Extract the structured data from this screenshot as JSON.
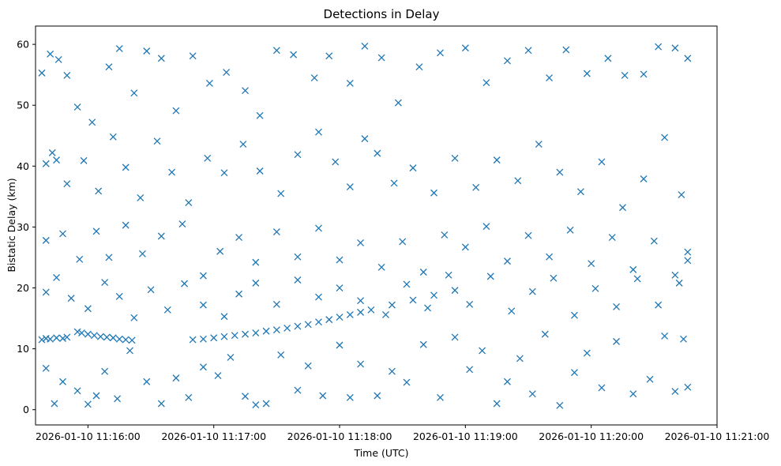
{
  "chart_data": {
    "type": "scatter",
    "title": "Detections in Delay",
    "xlabel": "Time (UTC)",
    "ylabel": "Bistatic Delay (km)",
    "x_ticks": [
      "2026-01-10 11:16:00",
      "2026-01-10 11:17:00",
      "2026-01-10 11:18:00",
      "2026-01-10 11:19:00",
      "2026-01-10 11:20:00",
      "2026-01-10 11:21:00"
    ],
    "y_ticks": [
      "0",
      "10",
      "20",
      "30",
      "40",
      "50",
      "60"
    ],
    "xlim": [
      "2026-01-10 11:15:35",
      "2026-01-10 11:21:00"
    ],
    "ylim": [
      -2.5,
      63
    ],
    "marker": "x",
    "grid": false,
    "series": [
      {
        "color": "#1f77b4",
        "points": [
          [
            "2026-01-10 11:15:38",
            11.5
          ],
          [
            "2026-01-10 11:15:40",
            11.7
          ],
          [
            "2026-01-10 11:15:42",
            11.6
          ],
          [
            "2026-01-10 11:15:45",
            11.8
          ],
          [
            "2026-01-10 11:15:48",
            11.7
          ],
          [
            "2026-01-10 11:15:50",
            11.9
          ],
          [
            "2026-01-10 11:15:55",
            12.8
          ],
          [
            "2026-01-10 11:15:57",
            12.6
          ],
          [
            "2026-01-10 11:16:00",
            12.4
          ],
          [
            "2026-01-10 11:16:03",
            12.2
          ],
          [
            "2026-01-10 11:16:06",
            12.0
          ],
          [
            "2026-01-10 11:16:09",
            11.9
          ],
          [
            "2026-01-10 11:16:12",
            11.8
          ],
          [
            "2026-01-10 11:16:15",
            11.6
          ],
          [
            "2026-01-10 11:16:18",
            11.5
          ],
          [
            "2026-01-10 11:16:21",
            11.4
          ],
          [
            "2026-01-10 11:16:50",
            11.5
          ],
          [
            "2026-01-10 11:16:55",
            11.6
          ],
          [
            "2026-01-10 11:17:00",
            11.8
          ],
          [
            "2026-01-10 11:17:05",
            12.0
          ],
          [
            "2026-01-10 11:17:10",
            12.2
          ],
          [
            "2026-01-10 11:17:15",
            12.4
          ],
          [
            "2026-01-10 11:17:20",
            12.6
          ],
          [
            "2026-01-10 11:17:25",
            12.9
          ],
          [
            "2026-01-10 11:17:30",
            13.1
          ],
          [
            "2026-01-10 11:17:35",
            13.4
          ],
          [
            "2026-01-10 11:17:40",
            13.7
          ],
          [
            "2026-01-10 11:17:45",
            14.0
          ],
          [
            "2026-01-10 11:17:50",
            14.4
          ],
          [
            "2026-01-10 11:17:55",
            14.8
          ],
          [
            "2026-01-10 11:18:00",
            15.2
          ],
          [
            "2026-01-10 11:18:05",
            15.6
          ],
          [
            "2026-01-10 11:18:10",
            16.0
          ],
          [
            "2026-01-10 11:18:15",
            16.4
          ],
          [
            "2026-01-10 11:18:25",
            17.2
          ],
          [
            "2026-01-10 11:18:35",
            18.0
          ],
          [
            "2026-01-10 11:18:45",
            18.8
          ],
          [
            "2026-01-10 11:18:55",
            19.6
          ],
          [
            "2026-01-10 11:15:38",
            55.3
          ],
          [
            "2026-01-10 11:15:42",
            58.4
          ],
          [
            "2026-01-10 11:15:46",
            57.5
          ],
          [
            "2026-01-10 11:15:50",
            54.9
          ],
          [
            "2026-01-10 11:15:55",
            49.7
          ],
          [
            "2026-01-10 11:16:02",
            47.2
          ],
          [
            "2026-01-10 11:16:10",
            56.3
          ],
          [
            "2026-01-10 11:16:15",
            59.3
          ],
          [
            "2026-01-10 11:16:22",
            52.0
          ],
          [
            "2026-01-10 11:16:28",
            58.9
          ],
          [
            "2026-01-10 11:16:35",
            57.7
          ],
          [
            "2026-01-10 11:16:42",
            49.1
          ],
          [
            "2026-01-10 11:16:50",
            58.1
          ],
          [
            "2026-01-10 11:16:58",
            53.6
          ],
          [
            "2026-01-10 11:17:06",
            55.4
          ],
          [
            "2026-01-10 11:17:15",
            52.4
          ],
          [
            "2026-01-10 11:17:22",
            48.3
          ],
          [
            "2026-01-10 11:17:30",
            59.0
          ],
          [
            "2026-01-10 11:17:38",
            58.3
          ],
          [
            "2026-01-10 11:17:48",
            54.5
          ],
          [
            "2026-01-10 11:17:55",
            58.1
          ],
          [
            "2026-01-10 11:18:05",
            53.6
          ],
          [
            "2026-01-10 11:18:12",
            59.7
          ],
          [
            "2026-01-10 11:18:20",
            57.8
          ],
          [
            "2026-01-10 11:18:28",
            50.4
          ],
          [
            "2026-01-10 11:18:38",
            56.3
          ],
          [
            "2026-01-10 11:18:48",
            58.6
          ],
          [
            "2026-01-10 11:19:00",
            59.4
          ],
          [
            "2026-01-10 11:19:10",
            53.7
          ],
          [
            "2026-01-10 11:19:20",
            57.3
          ],
          [
            "2026-01-10 11:19:30",
            59.0
          ],
          [
            "2026-01-10 11:19:40",
            54.5
          ],
          [
            "2026-01-10 11:19:48",
            59.1
          ],
          [
            "2026-01-10 11:19:58",
            55.2
          ],
          [
            "2026-01-10 11:20:08",
            57.7
          ],
          [
            "2026-01-10 11:20:16",
            54.9
          ],
          [
            "2026-01-10 11:20:25",
            55.1
          ],
          [
            "2026-01-10 11:20:32",
            59.6
          ],
          [
            "2026-01-10 11:20:40",
            59.4
          ],
          [
            "2026-01-10 11:20:46",
            57.7
          ],
          [
            "2026-01-10 11:15:40",
            40.4
          ],
          [
            "2026-01-10 11:15:43",
            42.2
          ],
          [
            "2026-01-10 11:15:45",
            41.0
          ],
          [
            "2026-01-10 11:15:50",
            37.1
          ],
          [
            "2026-01-10 11:15:58",
            40.9
          ],
          [
            "2026-01-10 11:16:05",
            35.9
          ],
          [
            "2026-01-10 11:16:12",
            44.8
          ],
          [
            "2026-01-10 11:16:18",
            39.8
          ],
          [
            "2026-01-10 11:16:25",
            34.8
          ],
          [
            "2026-01-10 11:16:33",
            44.1
          ],
          [
            "2026-01-10 11:16:40",
            39.0
          ],
          [
            "2026-01-10 11:16:48",
            34.0
          ],
          [
            "2026-01-10 11:16:57",
            41.3
          ],
          [
            "2026-01-10 11:17:05",
            38.9
          ],
          [
            "2026-01-10 11:17:14",
            43.6
          ],
          [
            "2026-01-10 11:17:22",
            39.2
          ],
          [
            "2026-01-10 11:17:32",
            35.5
          ],
          [
            "2026-01-10 11:17:40",
            41.9
          ],
          [
            "2026-01-10 11:17:50",
            45.6
          ],
          [
            "2026-01-10 11:17:58",
            40.7
          ],
          [
            "2026-01-10 11:18:05",
            36.6
          ],
          [
            "2026-01-10 11:18:12",
            44.5
          ],
          [
            "2026-01-10 11:18:18",
            42.1
          ],
          [
            "2026-01-10 11:18:26",
            37.2
          ],
          [
            "2026-01-10 11:18:35",
            39.7
          ],
          [
            "2026-01-10 11:18:45",
            35.6
          ],
          [
            "2026-01-10 11:18:55",
            41.3
          ],
          [
            "2026-01-10 11:19:05",
            36.5
          ],
          [
            "2026-01-10 11:19:15",
            41.0
          ],
          [
            "2026-01-10 11:19:25",
            37.6
          ],
          [
            "2026-01-10 11:19:35",
            43.6
          ],
          [
            "2026-01-10 11:19:45",
            39.0
          ],
          [
            "2026-01-10 11:19:55",
            35.8
          ],
          [
            "2026-01-10 11:20:05",
            40.7
          ],
          [
            "2026-01-10 11:20:15",
            33.2
          ],
          [
            "2026-01-10 11:20:25",
            37.9
          ],
          [
            "2026-01-10 11:20:35",
            44.7
          ],
          [
            "2026-01-10 11:20:43",
            35.3
          ],
          [
            "2026-01-10 11:15:40",
            27.8
          ],
          [
            "2026-01-10 11:15:48",
            28.9
          ],
          [
            "2026-01-10 11:15:56",
            24.7
          ],
          [
            "2026-01-10 11:16:04",
            29.3
          ],
          [
            "2026-01-10 11:16:10",
            25.0
          ],
          [
            "2026-01-10 11:16:18",
            30.3
          ],
          [
            "2026-01-10 11:16:26",
            25.6
          ],
          [
            "2026-01-10 11:16:35",
            28.5
          ],
          [
            "2026-01-10 11:16:45",
            30.5
          ],
          [
            "2026-01-10 11:16:55",
            22.0
          ],
          [
            "2026-01-10 11:17:03",
            26.0
          ],
          [
            "2026-01-10 11:17:12",
            28.3
          ],
          [
            "2026-01-10 11:17:20",
            24.2
          ],
          [
            "2026-01-10 11:17:30",
            29.2
          ],
          [
            "2026-01-10 11:17:40",
            25.1
          ],
          [
            "2026-01-10 11:17:50",
            29.8
          ],
          [
            "2026-01-10 11:18:00",
            24.6
          ],
          [
            "2026-01-10 11:18:10",
            27.4
          ],
          [
            "2026-01-10 11:18:20",
            23.4
          ],
          [
            "2026-01-10 11:18:30",
            27.6
          ],
          [
            "2026-01-10 11:18:40",
            22.6
          ],
          [
            "2026-01-10 11:18:50",
            28.7
          ],
          [
            "2026-01-10 11:19:00",
            26.7
          ],
          [
            "2026-01-10 11:19:10",
            30.1
          ],
          [
            "2026-01-10 11:19:20",
            24.4
          ],
          [
            "2026-01-10 11:19:30",
            28.6
          ],
          [
            "2026-01-10 11:19:40",
            25.1
          ],
          [
            "2026-01-10 11:19:50",
            29.5
          ],
          [
            "2026-01-10 11:20:00",
            24.0
          ],
          [
            "2026-01-10 11:20:10",
            28.3
          ],
          [
            "2026-01-10 11:20:20",
            23.0
          ],
          [
            "2026-01-10 11:20:30",
            27.7
          ],
          [
            "2026-01-10 11:20:40",
            22.1
          ],
          [
            "2026-01-10 11:20:46",
            25.9
          ],
          [
            "2026-01-10 11:15:40",
            19.3
          ],
          [
            "2026-01-10 11:15:45",
            21.7
          ],
          [
            "2026-01-10 11:15:52",
            18.3
          ],
          [
            "2026-01-10 11:16:00",
            16.6
          ],
          [
            "2026-01-10 11:16:08",
            20.9
          ],
          [
            "2026-01-10 11:16:15",
            18.6
          ],
          [
            "2026-01-10 11:16:22",
            15.1
          ],
          [
            "2026-01-10 11:16:30",
            19.7
          ],
          [
            "2026-01-10 11:16:38",
            16.4
          ],
          [
            "2026-01-10 11:16:46",
            20.7
          ],
          [
            "2026-01-10 11:16:55",
            17.2
          ],
          [
            "2026-01-10 11:17:05",
            15.3
          ],
          [
            "2026-01-10 11:17:12",
            19.0
          ],
          [
            "2026-01-10 11:17:20",
            20.8
          ],
          [
            "2026-01-10 11:17:30",
            17.3
          ],
          [
            "2026-01-10 11:17:40",
            21.3
          ],
          [
            "2026-01-10 11:17:50",
            18.5
          ],
          [
            "2026-01-10 11:18:00",
            20.0
          ],
          [
            "2026-01-10 11:18:10",
            17.9
          ],
          [
            "2026-01-10 11:18:22",
            15.6
          ],
          [
            "2026-01-10 11:18:32",
            20.6
          ],
          [
            "2026-01-10 11:18:42",
            16.7
          ],
          [
            "2026-01-10 11:18:52",
            22.1
          ],
          [
            "2026-01-10 11:19:02",
            17.3
          ],
          [
            "2026-01-10 11:19:12",
            21.9
          ],
          [
            "2026-01-10 11:19:22",
            16.2
          ],
          [
            "2026-01-10 11:19:32",
            19.4
          ],
          [
            "2026-01-10 11:19:42",
            21.6
          ],
          [
            "2026-01-10 11:19:52",
            15.5
          ],
          [
            "2026-01-10 11:20:02",
            19.9
          ],
          [
            "2026-01-10 11:20:12",
            16.9
          ],
          [
            "2026-01-10 11:20:22",
            21.5
          ],
          [
            "2026-01-10 11:20:32",
            17.2
          ],
          [
            "2026-01-10 11:20:42",
            20.8
          ],
          [
            "2026-01-10 11:20:46",
            24.5
          ],
          [
            "2026-01-10 11:15:40",
            6.8
          ],
          [
            "2026-01-10 11:15:44",
            1.0
          ],
          [
            "2026-01-10 11:15:48",
            4.6
          ],
          [
            "2026-01-10 11:15:55",
            3.1
          ],
          [
            "2026-01-10 11:16:00",
            0.9
          ],
          [
            "2026-01-10 11:16:04",
            2.3
          ],
          [
            "2026-01-10 11:16:08",
            6.3
          ],
          [
            "2026-01-10 11:16:14",
            1.8
          ],
          [
            "2026-01-10 11:16:20",
            9.7
          ],
          [
            "2026-01-10 11:16:28",
            4.6
          ],
          [
            "2026-01-10 11:16:35",
            1.0
          ],
          [
            "2026-01-10 11:16:42",
            5.2
          ],
          [
            "2026-01-10 11:16:48",
            2.0
          ],
          [
            "2026-01-10 11:16:55",
            7.0
          ],
          [
            "2026-01-10 11:17:02",
            5.6
          ],
          [
            "2026-01-10 11:17:08",
            8.6
          ],
          [
            "2026-01-10 11:17:15",
            2.2
          ],
          [
            "2026-01-10 11:17:20",
            0.8
          ],
          [
            "2026-01-10 11:17:25",
            1.0
          ],
          [
            "2026-01-10 11:17:32",
            9.0
          ],
          [
            "2026-01-10 11:17:40",
            3.2
          ],
          [
            "2026-01-10 11:17:45",
            7.2
          ],
          [
            "2026-01-10 11:17:52",
            2.3
          ],
          [
            "2026-01-10 11:18:00",
            10.6
          ],
          [
            "2026-01-10 11:18:05",
            2.0
          ],
          [
            "2026-01-10 11:18:10",
            7.5
          ],
          [
            "2026-01-10 11:18:18",
            2.3
          ],
          [
            "2026-01-10 11:18:25",
            6.3
          ],
          [
            "2026-01-10 11:18:32",
            4.5
          ],
          [
            "2026-01-10 11:18:40",
            10.7
          ],
          [
            "2026-01-10 11:18:48",
            2.0
          ],
          [
            "2026-01-10 11:18:55",
            11.9
          ],
          [
            "2026-01-10 11:19:02",
            6.6
          ],
          [
            "2026-01-10 11:19:08",
            9.7
          ],
          [
            "2026-01-10 11:19:15",
            1.0
          ],
          [
            "2026-01-10 11:19:20",
            4.6
          ],
          [
            "2026-01-10 11:19:26",
            8.4
          ],
          [
            "2026-01-10 11:19:32",
            2.6
          ],
          [
            "2026-01-10 11:19:38",
            12.4
          ],
          [
            "2026-01-10 11:19:45",
            0.7
          ],
          [
            "2026-01-10 11:19:52",
            6.1
          ],
          [
            "2026-01-10 11:19:58",
            9.3
          ],
          [
            "2026-01-10 11:20:05",
            3.6
          ],
          [
            "2026-01-10 11:20:12",
            11.2
          ],
          [
            "2026-01-10 11:20:20",
            2.6
          ],
          [
            "2026-01-10 11:20:28",
            5.0
          ],
          [
            "2026-01-10 11:20:35",
            12.1
          ],
          [
            "2026-01-10 11:20:40",
            3.0
          ],
          [
            "2026-01-10 11:20:44",
            11.6
          ],
          [
            "2026-01-10 11:20:46",
            3.7
          ]
        ]
      }
    ]
  }
}
